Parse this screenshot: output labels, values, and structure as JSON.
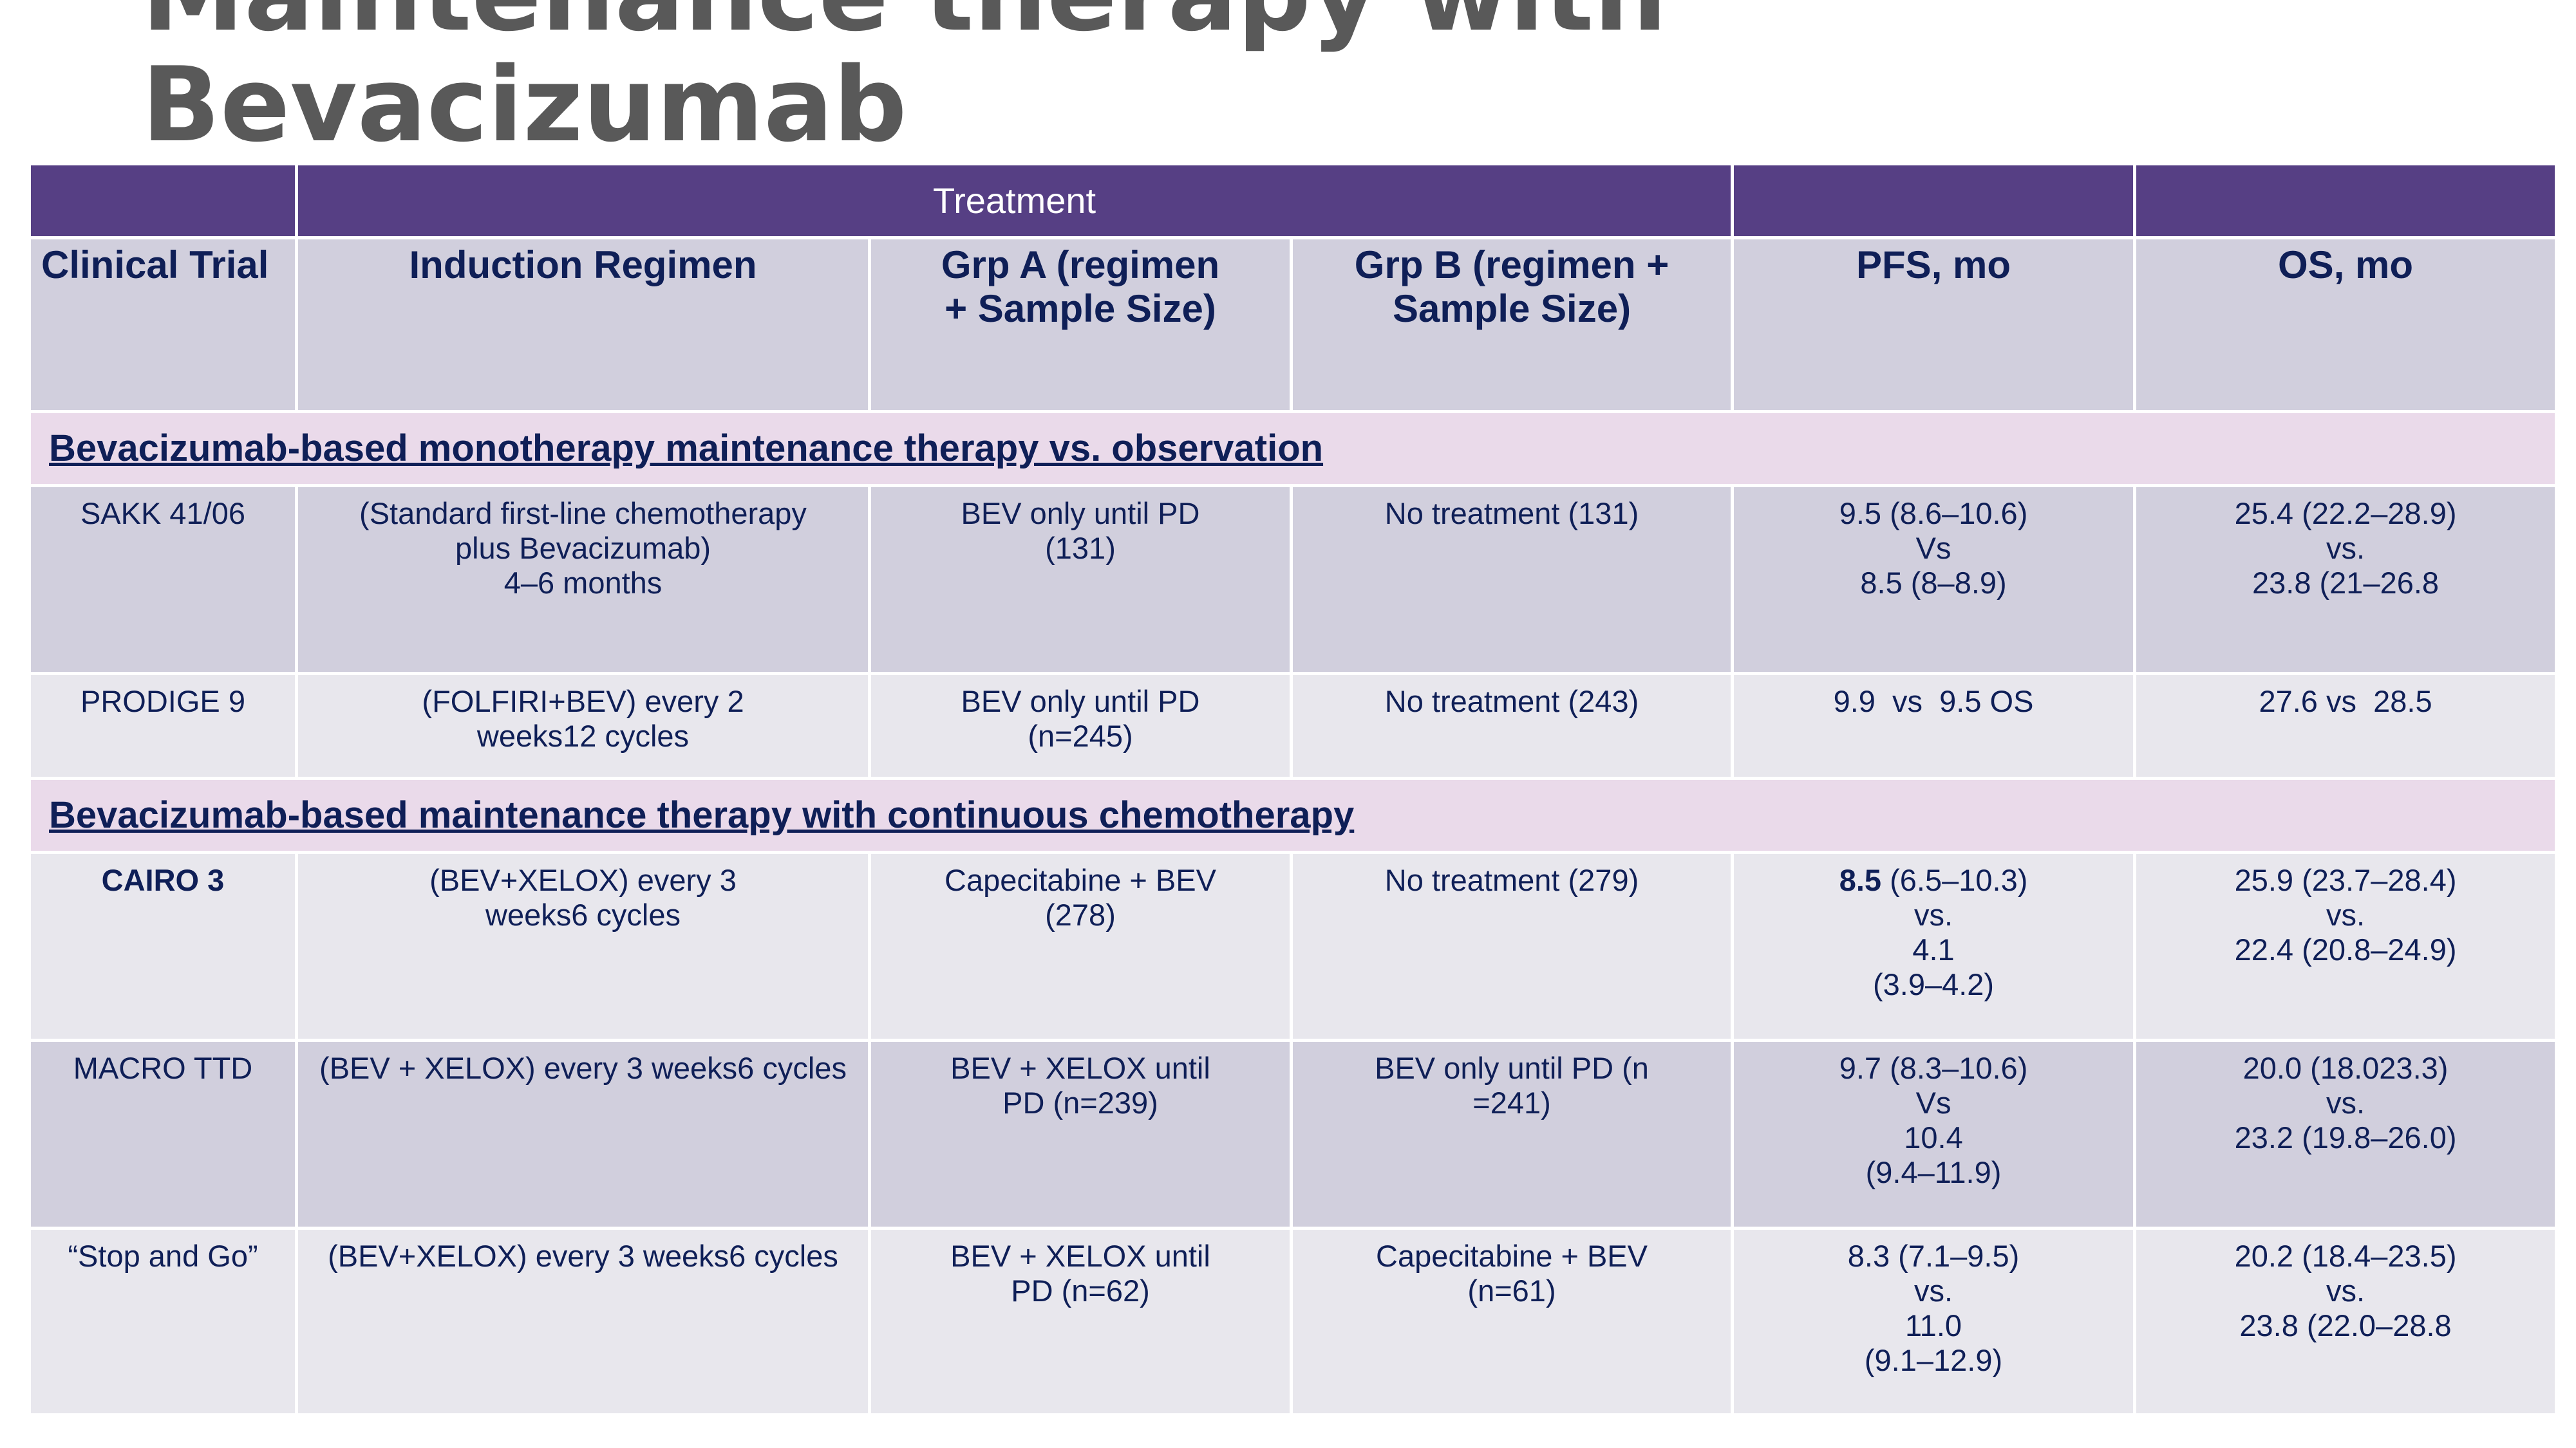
{
  "title": {
    "line1": "Maintenance therapy with",
    "line2": "Bevacizumab"
  },
  "header_group": "Treatment",
  "columns": [
    "Clinical Trial",
    "Induction Regimen",
    "Grp A (regimen + Sample Size)",
    "Grp B (regimen + Sample Size)",
    "PFS, mo",
    "OS, mo"
  ],
  "sections": [
    {
      "title": "Bevacizumab-based monotherapy maintenance therapy vs. observation",
      "rows": [
        {
          "trial": "SAKK 41/06",
          "induction": [
            "(Standard first-line chemotherapy",
            "plus Bevacizumab)",
            "4–6 months"
          ],
          "grp_a": [
            "BEV only until PD",
            "(131)"
          ],
          "grp_b": [
            "No treatment (131)"
          ],
          "pfs": [
            "9.5 (8.6–10.6)",
            "Vs",
            "8.5 (8–8.9)"
          ],
          "os": [
            "25.4 (22.2–28.9)",
            "vs.",
            "23.8 (21–26.8"
          ]
        },
        {
          "trial": "PRODIGE 9",
          "induction": [
            "(FOLFIRI+BEV) every 2",
            "weeks12 cycles"
          ],
          "grp_a": [
            "BEV only until PD",
            "(n=245)"
          ],
          "grp_b": [
            "No treatment (243)"
          ],
          "pfs": [
            "9.9  vs  9.5 OS"
          ],
          "os": [
            "27.6 vs  28.5"
          ]
        }
      ]
    },
    {
      "title": "Bevacizumab-based maintenance therapy with continuous chemotherapy",
      "rows": [
        {
          "trial": "CAIRO 3",
          "induction": [
            "(BEV+XELOX) every 3",
            "weeks6 cycles"
          ],
          "grp_a": [
            "Capecitabine + BEV",
            "(278)"
          ],
          "grp_b": [
            "No treatment (279)"
          ],
          "pfs_bold": "8.5",
          "pfs_rest": " (6.5–10.3)",
          "pfs": [
            "vs.",
            "4.1",
            "(3.9–4.2)"
          ],
          "os": [
            "25.9 (23.7–28.4)",
            "vs.",
            "22.4 (20.8–24.9)"
          ]
        },
        {
          "trial": "MACRO TTD",
          "induction": [
            "(BEV + XELOX) every 3 weeks6 cycles"
          ],
          "grp_a": [
            "BEV + XELOX until",
            "PD (n=239)"
          ],
          "grp_b": [
            "BEV only until PD (n",
            "=241)"
          ],
          "pfs": [
            "9.7 (8.3–10.6)",
            "Vs",
            "10.4",
            "(9.4–11.9)"
          ],
          "os": [
            "20.0 (18.023.3)",
            "vs.",
            "23.2 (19.8–26.0)"
          ]
        },
        {
          "trial": "“Stop and Go”",
          "induction": [
            "(BEV+XELOX) every 3 weeks6 cycles"
          ],
          "grp_a": [
            "BEV + XELOX until",
            "PD (n=62)"
          ],
          "grp_b": [
            "Capecitabine + BEV",
            "(n=61)"
          ],
          "pfs": [
            "8.3 (7.1–9.5)",
            "vs.",
            "11.0",
            "(9.1–12.9)"
          ],
          "os": [
            "20.2 (18.4–23.5)",
            "vs.",
            "23.8 (22.0–28.8"
          ]
        }
      ]
    }
  ]
}
